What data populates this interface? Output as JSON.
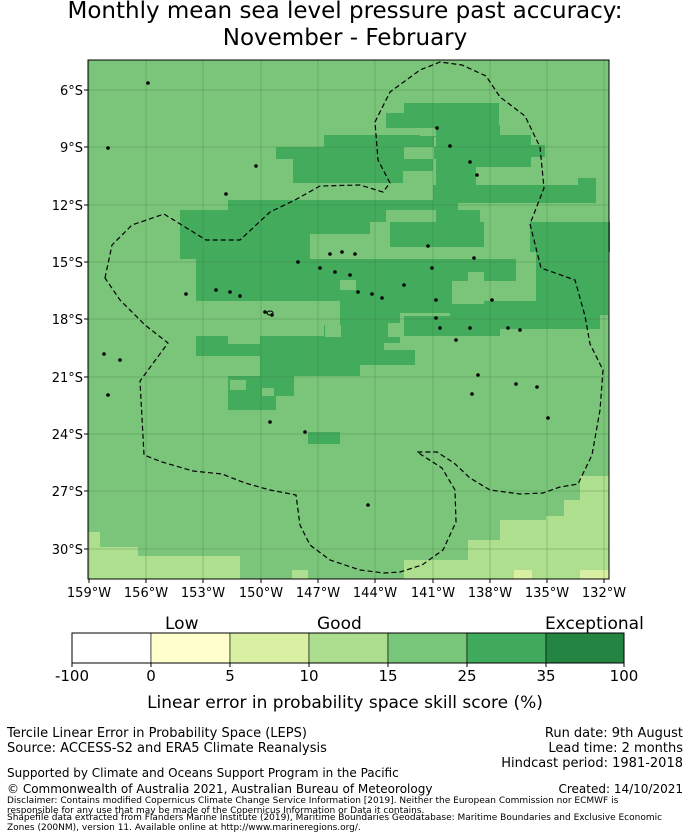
{
  "title": {
    "line1": "Monthly mean sea level pressure past accuracy:",
    "line2": "November - February"
  },
  "map": {
    "lat_labels": [
      "6°S",
      "9°S",
      "12°S",
      "15°S",
      "18°S",
      "21°S",
      "24°S",
      "27°S",
      "30°S"
    ],
    "lon_labels": [
      "159°W",
      "156°W",
      "153°W",
      "150°W",
      "147°W",
      "144°W",
      "141°W",
      "138°W",
      "135°W",
      "132°W"
    ],
    "colors": {
      "c15_25": "#7ac57a",
      "c25_35": "#42ab5c",
      "c10_15": "#addf8e",
      "c5_10": "#d9f0a3"
    }
  },
  "colorbar": {
    "categories": [
      {
        "label": "Low",
        "position_tick": "0"
      },
      {
        "label": "Good",
        "position_tick": "10"
      },
      {
        "label": "Exceptional",
        "position_tick": "35"
      }
    ],
    "ticks": [
      "-100",
      "0",
      "5",
      "10",
      "15",
      "25",
      "35",
      "100"
    ],
    "bins": [
      {
        "from": -100,
        "to": 0,
        "color": "#ffffff"
      },
      {
        "from": 0,
        "to": 5,
        "color": "#ffffcc"
      },
      {
        "from": 5,
        "to": 10,
        "color": "#d9f0a3"
      },
      {
        "from": 10,
        "to": 15,
        "color": "#addd8e"
      },
      {
        "from": 15,
        "to": 25,
        "color": "#78c679"
      },
      {
        "from": 25,
        "to": 35,
        "color": "#41ab5d"
      },
      {
        "from": 35,
        "to": 100,
        "color": "#238443"
      }
    ],
    "title": "Linear error in probability space skill score (%)"
  },
  "footer": {
    "left1": "Tercile Linear Error in Probability Space (LEPS)",
    "left2": "Source: ACCESS-S2 and ERA5 Climate Reanalysis",
    "right1": "Run date: 9th August",
    "right2": "Lead time: 2 months",
    "right3": "Hindcast period: 1981-2018",
    "support": "Supported by Climate and Oceans Support Program in the Pacific",
    "copyright": "© Commonwealth of Australia 2021, Australian Bureau of Meteorology",
    "created": "Created: 14/10/2021",
    "disclaimer1": "Disclaimer: Contains modified Copernicus Climate Change Service Information [2019]. Neither the European Commission nor ECMWF is",
    "disclaimer2": "responsible for any use that may be made of the Copernicus Information or Data it contains.",
    "disclaimer3": "Shapefile data extracted from Flanders Marine Institute (2019), Maritime Boundaries Geodatabase: Maritime Boundaries and Exclusive Economic",
    "disclaimer4": "Zones (200NM), version 11. Available online at http://www.marineregions.org/."
  }
}
